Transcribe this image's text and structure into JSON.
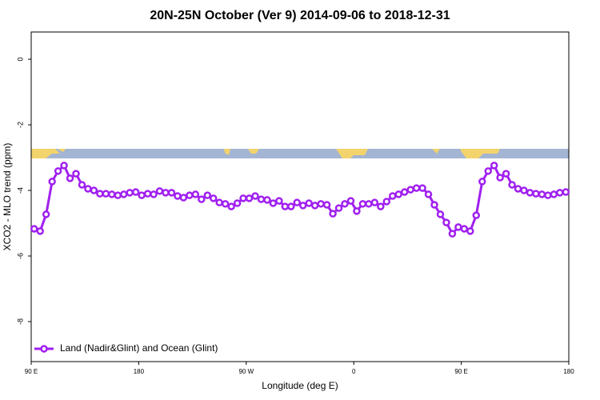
{
  "chart_data": {
    "type": "line",
    "title": "20N-25N October (Ver 9)   2014-09-06 to 2018-12-31",
    "x_label": "Longitude (deg E)",
    "y_label": "XCO2 - MLO trend (ppm)",
    "xlim": [
      90,
      540
    ],
    "ylim": [
      -9.22,
      0.83
    ],
    "xticks": [
      {
        "value": 90,
        "label": "90 E"
      },
      {
        "value": 180,
        "label": "180"
      },
      {
        "value": 270,
        "label": "90 W"
      },
      {
        "value": 360,
        "label": "0"
      },
      {
        "value": 450,
        "label": "90 E"
      },
      {
        "value": 540,
        "label": "180"
      }
    ],
    "yticks": [
      0,
      -2,
      -4,
      -6,
      -8
    ],
    "legend": "bottom-left",
    "x": [
      92.5,
      97.5,
      102.5,
      107.5,
      112.5,
      117.5,
      122.5,
      127.5,
      132.5,
      137.5,
      142.5,
      147.5,
      152.5,
      157.5,
      162.5,
      167.5,
      172.5,
      177.5,
      182.5,
      187.5,
      192.5,
      197.5,
      202.5,
      207.5,
      212.5,
      217.5,
      222.5,
      227.5,
      232.5,
      237.5,
      242.5,
      247.5,
      252.5,
      257.5,
      262.5,
      267.5,
      272.5,
      277.5,
      282.5,
      287.5,
      292.5,
      297.5,
      302.5,
      307.5,
      312.5,
      317.5,
      322.5,
      327.5,
      332.5,
      337.5,
      342.5,
      347.5,
      352.5,
      357.5,
      362.5,
      367.5,
      372.5,
      377.5,
      382.5,
      387.5,
      392.5,
      397.5,
      402.5,
      407.5,
      412.5,
      417.5,
      422.5,
      427.5,
      432.5,
      437.5,
      442.5,
      447.5,
      452.5,
      457.5,
      462.5,
      467.5,
      472.5,
      477.5,
      482.5,
      487.5,
      492.5,
      497.5,
      502.5,
      507.5,
      512.5,
      517.5,
      522.5,
      527.5,
      532.5,
      537.5
    ],
    "series": [
      {
        "name": "Land (Nadir&Glint) and Ocean (Glint)",
        "color": "#a020f0",
        "values": [
          -5.17,
          -5.24,
          -4.73,
          -3.73,
          -3.41,
          -3.24,
          -3.63,
          -3.49,
          -3.83,
          -3.95,
          -4.0,
          -4.1,
          -4.1,
          -4.12,
          -4.15,
          -4.12,
          -4.07,
          -4.05,
          -4.15,
          -4.1,
          -4.12,
          -4.02,
          -4.07,
          -4.07,
          -4.17,
          -4.22,
          -4.15,
          -4.12,
          -4.27,
          -4.15,
          -4.24,
          -4.37,
          -4.41,
          -4.49,
          -4.39,
          -4.24,
          -4.24,
          -4.17,
          -4.27,
          -4.29,
          -4.39,
          -4.32,
          -4.49,
          -4.49,
          -4.37,
          -4.46,
          -4.39,
          -4.46,
          -4.41,
          -4.44,
          -4.71,
          -4.54,
          -4.41,
          -4.32,
          -4.63,
          -4.41,
          -4.41,
          -4.37,
          -4.49,
          -4.34,
          -4.17,
          -4.12,
          -4.05,
          -3.98,
          -3.93,
          -3.93,
          -4.12,
          -4.44,
          -4.73,
          -4.98,
          -5.32,
          -5.12,
          -5.17,
          -5.24,
          -4.76,
          -3.73,
          -3.41,
          -3.24,
          -3.61,
          -3.49,
          -3.83,
          -3.95,
          -4.0,
          -4.07,
          -4.1,
          -4.12,
          -4.15,
          -4.12,
          -4.07,
          -4.05
        ]
      }
    ]
  }
}
